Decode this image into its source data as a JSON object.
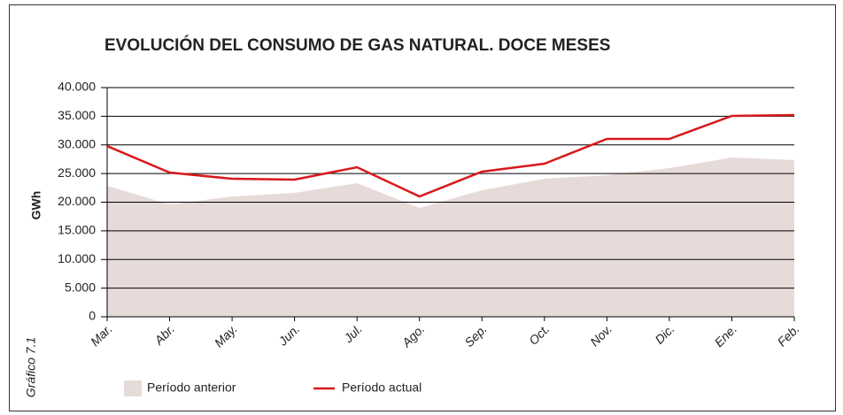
{
  "chart_data": {
    "type": "line",
    "title": "EVOLUCIÓN DEL CONSUMO DE GAS NATURAL. DOCE MESES",
    "y_label": "GWh",
    "side_label": "Gráfico 7.1",
    "categories": [
      "Mar.",
      "Abr.",
      "May.",
      "Jun.",
      "Jul.",
      "Ago.",
      "Sep.",
      "Oct.",
      "Nov.",
      "Dic.",
      "Ene.",
      "Feb."
    ],
    "series": [
      {
        "name": "Período anterior",
        "kind": "area",
        "color": "#e6dbd8",
        "values": [
          22860,
          19600,
          21000,
          21620,
          23320,
          19000,
          22090,
          24090,
          24710,
          25950,
          27800,
          27340
        ]
      },
      {
        "name": "Período actual",
        "kind": "line",
        "color": "#d7191c",
        "values": [
          29800,
          25170,
          24090,
          23940,
          26100,
          21000,
          25330,
          26720,
          31040,
          31040,
          35060,
          35210
        ]
      }
    ],
    "ylim": [
      0,
      40000
    ],
    "yticks": [
      0,
      {
        "value": 5000,
        "label": "5.000"
      },
      {
        "value": 10000,
        "label": "10.000"
      },
      {
        "value": 15000,
        "label": "15.000"
      },
      {
        "value": 20000,
        "label": "20.000"
      },
      {
        "value": 25000,
        "label": "25.000"
      },
      {
        "value": 30000,
        "label": "30.000"
      },
      {
        "value": 35000,
        "label": "35.000"
      },
      {
        "value": 40000,
        "label": "40.000"
      }
    ],
    "grid": true
  }
}
